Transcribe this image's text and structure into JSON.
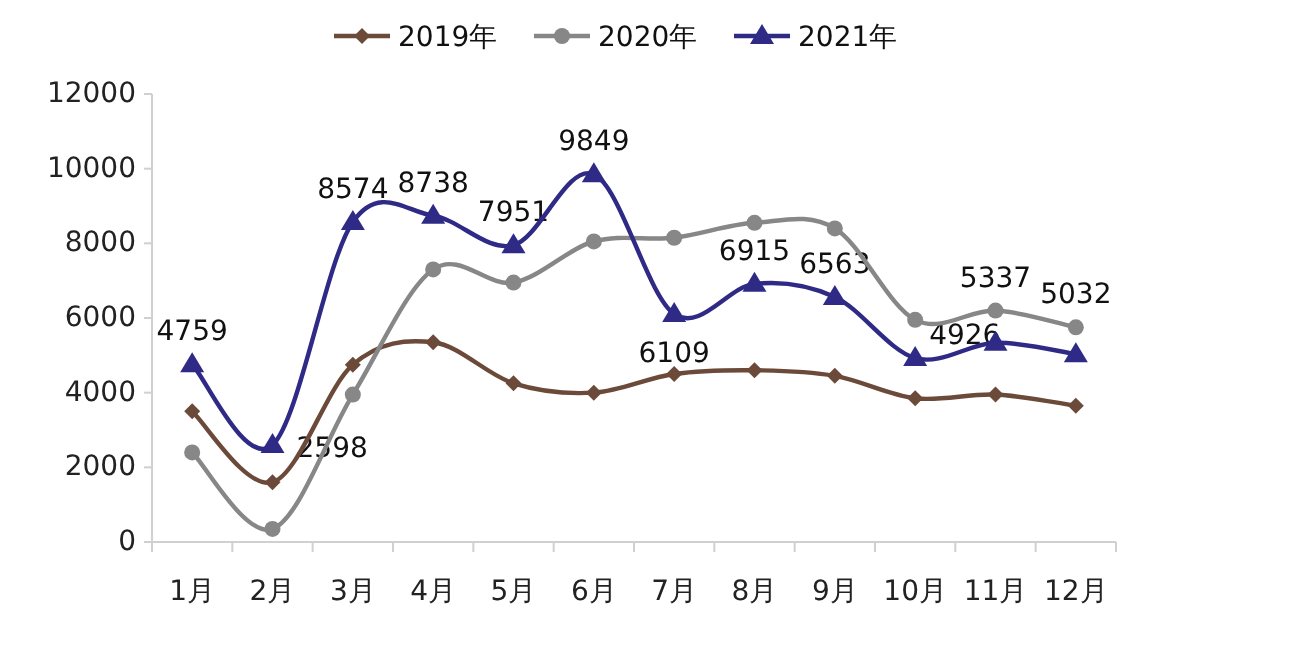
{
  "chart_data": {
    "type": "line",
    "categories": [
      "1月",
      "2月",
      "3月",
      "4月",
      "5月",
      "6月",
      "7月",
      "8月",
      "9月",
      "10月",
      "11月",
      "12月"
    ],
    "series": [
      {
        "name": "2019年",
        "color": "#6b4a3a",
        "marker": "diamond",
        "values": [
          3500,
          1600,
          4750,
          5350,
          4250,
          4000,
          4500,
          4600,
          4450,
          3850,
          3950,
          3650
        ]
      },
      {
        "name": "2020年",
        "color": "#878787",
        "marker": "circle",
        "values": [
          2400,
          350,
          3950,
          7300,
          6950,
          8050,
          8150,
          8550,
          8400,
          5950,
          6200,
          5750
        ]
      },
      {
        "name": "2021年",
        "color": "#2e2a86",
        "marker": "triangle",
        "values": [
          4759,
          2598,
          8574,
          8738,
          7951,
          9849,
          6109,
          6915,
          6563,
          4926,
          5337,
          5032
        ],
        "value_labels": [
          "4759",
          "2598",
          "8574",
          "8738",
          "7951",
          "9849",
          "6109",
          "6915",
          "6563",
          "4926",
          "5337",
          "5032"
        ]
      }
    ],
    "ylim": [
      0,
      12000
    ],
    "yticks": [
      0,
      2000,
      4000,
      6000,
      8000,
      10000,
      12000
    ],
    "grid": false,
    "legend": "top",
    "line_style": "solid"
  }
}
